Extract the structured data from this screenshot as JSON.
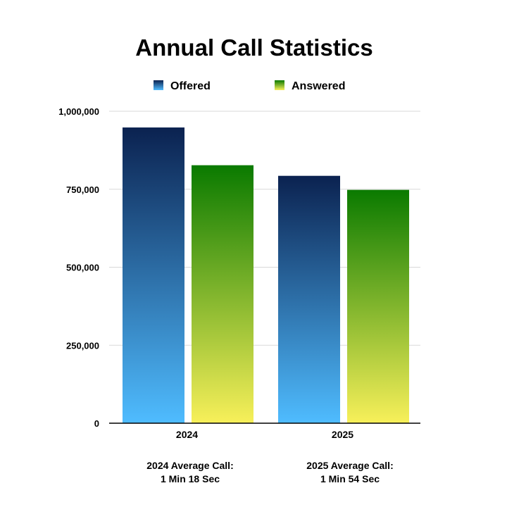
{
  "chart_data": {
    "type": "bar",
    "title": "Annual Call Statistics",
    "xlabel": "",
    "ylabel": "",
    "categories": [
      "2024",
      "2025"
    ],
    "series": [
      {
        "name": "Offered",
        "values": [
          948000,
          793000
        ],
        "gradient": [
          "#0b2250",
          "#4fbcff"
        ]
      },
      {
        "name": "Answered",
        "values": [
          827000,
          748000
        ],
        "gradient": [
          "#0a7a00",
          "#f8f05a"
        ]
      }
    ],
    "ylim": [
      0,
      1000000
    ],
    "yticks": [
      "0",
      "250,000",
      "500,000",
      "750,000",
      "1,000,000"
    ],
    "ytick_values": [
      0,
      250000,
      500000,
      750000,
      1000000
    ],
    "grid": true,
    "legend_position": "top"
  },
  "notes": [
    {
      "line1": "2024 Average Call:",
      "line2": "1 Min 18 Sec"
    },
    {
      "line1": "2025 Average Call:",
      "line2": "1 Min 54 Sec"
    }
  ]
}
